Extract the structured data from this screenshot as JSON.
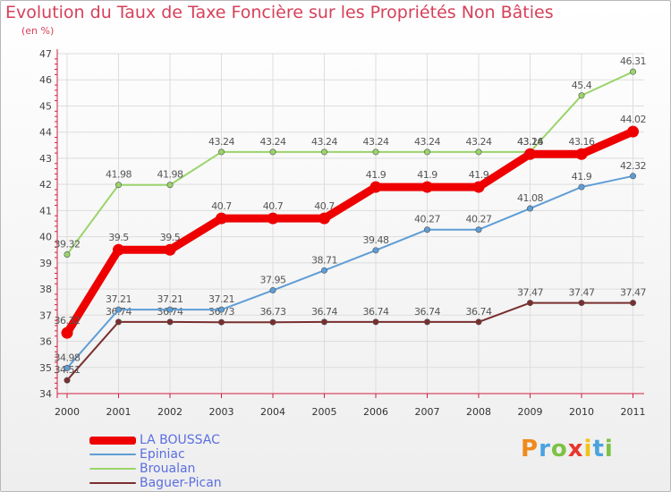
{
  "chart_data": {
    "type": "line",
    "title": "Evolution du Taux de Taxe Foncière sur les Propriétés Non Bâties",
    "ylabel": "(en %)",
    "categories": [
      "2000",
      "2001",
      "2002",
      "2003",
      "2004",
      "2005",
      "2006",
      "2007",
      "2008",
      "2009",
      "2010",
      "2011"
    ],
    "ylim": [
      34,
      47
    ],
    "yticks": [
      "34",
      "35",
      "36",
      "37",
      "38",
      "39",
      "40",
      "41",
      "42",
      "43",
      "44",
      "45",
      "46",
      "47"
    ],
    "series": [
      {
        "name": "Baguer-Pican",
        "color": "#7a2e2e",
        "values": [
          34.51,
          36.74,
          36.74,
          36.73,
          36.73,
          36.74,
          36.74,
          36.74,
          36.74,
          37.47,
          37.47,
          37.47
        ],
        "labels": [
          "34.51",
          "36.74",
          "36.74",
          "36.73",
          "36.73",
          "36.74",
          "36.74",
          "36.74",
          "36.74",
          "37.47",
          "37.47",
          "37.47"
        ]
      },
      {
        "name": "Broualan",
        "color": "#9ad46a",
        "values": [
          39.32,
          41.98,
          41.98,
          43.24,
          43.24,
          43.24,
          43.24,
          43.24,
          43.24,
          43.24,
          45.4,
          46.31
        ],
        "labels": [
          "39.32",
          "41.98",
          "41.98",
          "43.24",
          "43.24",
          "43.24",
          "43.24",
          "43.24",
          "43.24",
          "43.24",
          "45.4",
          "46.31"
        ]
      },
      {
        "name": "Epiniac",
        "color": "#5e9dd6",
        "values": [
          34.98,
          37.21,
          37.21,
          37.21,
          37.95,
          38.71,
          39.48,
          40.27,
          40.27,
          41.08,
          41.9,
          42.32
        ],
        "labels": [
          "34.98",
          "37.21",
          "37.21",
          "37.21",
          "37.95",
          "38.71",
          "39.48",
          "40.27",
          "40.27",
          "41.08",
          "41.9",
          "42.32"
        ]
      },
      {
        "name": "LA BOUSSAC",
        "color": "#ee0000",
        "values": [
          36.32,
          39.5,
          39.5,
          40.7,
          40.7,
          40.7,
          41.9,
          41.9,
          41.9,
          43.16,
          43.16,
          44.02
        ],
        "labels": [
          "36.32",
          "39.5",
          "39.5",
          "40.7",
          "40.7",
          "40.7",
          "41.9",
          "41.9",
          "41.9",
          "43.16",
          "43.16",
          "44.02"
        ]
      }
    ],
    "legend": [
      "LA BOUSSAC",
      "Epiniac",
      "Broualan",
      "Baguer-Pican"
    ]
  },
  "logo_text": "Proxiti"
}
